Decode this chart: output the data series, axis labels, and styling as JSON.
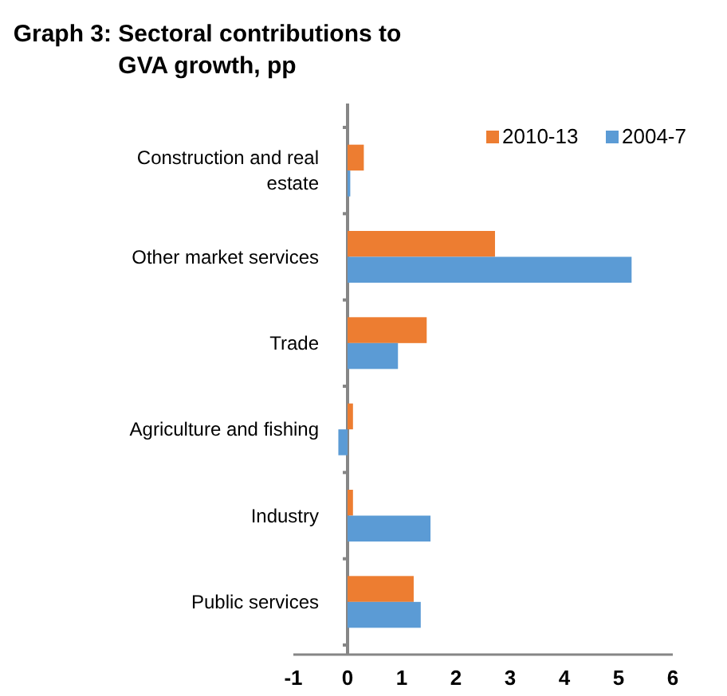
{
  "chart_data": {
    "type": "bar",
    "orientation": "horizontal",
    "title": "Graph 3: Sectoral contributions to GVA growth, pp",
    "categories": [
      "Construction and real estate",
      "Other market services",
      "Trade",
      "Agriculture and fishing",
      "Industry",
      "Public services"
    ],
    "series": [
      {
        "name": "2010-13",
        "color": "#ed7d31",
        "values": [
          0.3,
          2.72,
          1.46,
          0.1,
          0.1,
          1.22
        ]
      },
      {
        "name": "2004-7",
        "color": "#5b9bd5",
        "values": [
          0.05,
          5.24,
          0.93,
          -0.17,
          1.53,
          1.35
        ]
      }
    ],
    "xlim": [
      -1,
      6
    ],
    "xticks": [
      -1,
      0,
      1,
      2,
      3,
      4,
      5,
      6
    ],
    "grid": false,
    "legend": "top right"
  }
}
